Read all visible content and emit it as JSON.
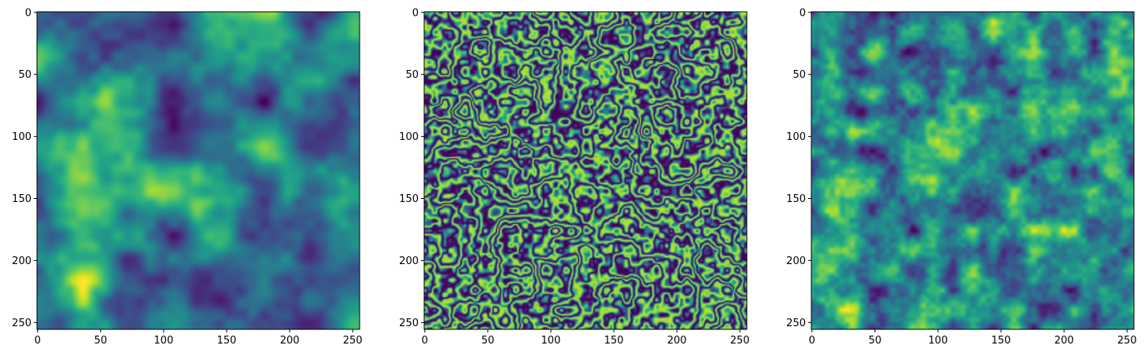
{
  "chart_data": [
    {
      "type": "heatmap",
      "title": "",
      "xlabel": "",
      "ylabel": "",
      "image_shape": [
        256,
        256
      ],
      "xlim": [
        0,
        255
      ],
      "ylim": [
        255,
        0
      ],
      "xticks": [
        0,
        50,
        100,
        150,
        200,
        250
      ],
      "yticks": [
        0,
        50,
        100,
        150,
        200,
        250
      ],
      "colormap": "viridis",
      "pattern": "smooth large-scale noise field",
      "smoothness": 9,
      "seed": 11
    },
    {
      "type": "heatmap",
      "title": "",
      "xlabel": "",
      "ylabel": "",
      "image_shape": [
        256,
        256
      ],
      "xlim": [
        0,
        255
      ],
      "ylim": [
        255,
        0
      ],
      "xticks": [
        0,
        50,
        100,
        150,
        200,
        250
      ],
      "yticks": [
        0,
        50,
        100,
        150,
        200,
        250
      ],
      "colormap": "viridis",
      "pattern": "thin worm-like ridges (mostly low values)",
      "smoothness": 4,
      "seed": 23
    },
    {
      "type": "heatmap",
      "title": "",
      "xlabel": "",
      "ylabel": "",
      "image_shape": [
        256,
        256
      ],
      "xlim": [
        0,
        255
      ],
      "ylim": [
        255,
        0
      ],
      "xticks": [
        0,
        50,
        100,
        150,
        200,
        250
      ],
      "yticks": [
        0,
        50,
        100,
        150,
        200,
        250
      ],
      "colormap": "viridis",
      "pattern": "fine-grained noise field",
      "smoothness": 4,
      "seed": 37
    }
  ],
  "colors": {
    "viridis_low": "#440154",
    "viridis_mid": "#21918c",
    "viridis_high": "#fde725",
    "axis": "#000000",
    "background": "#ffffff"
  }
}
